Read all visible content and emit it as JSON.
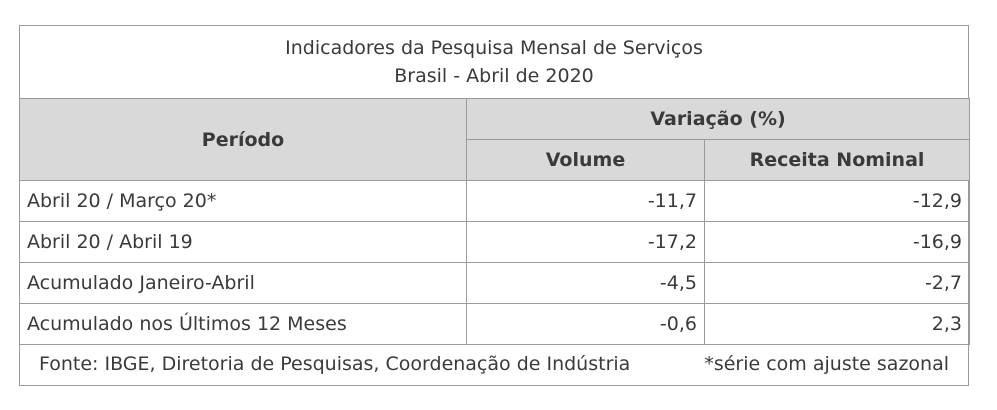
{
  "title": {
    "line1": "Indicadores da Pesquisa Mensal de Serviços",
    "line2": "Brasil - Abril de 2020"
  },
  "headers": {
    "period": "Período",
    "variation": "Variação (%)",
    "volume": "Volume",
    "revenue": "Receita Nominal"
  },
  "rows": [
    {
      "period": "Abril 20 / Março 20*",
      "volume": "-11,7",
      "revenue": "-12,9"
    },
    {
      "period": "Abril 20 / Abril 19",
      "volume": "-17,2",
      "revenue": "-16,9"
    },
    {
      "period": "Acumulado Janeiro-Abril",
      "volume": "-4,5",
      "revenue": "-2,7"
    },
    {
      "period": "Acumulado nos Últimos 12 Meses",
      "volume": "-0,6",
      "revenue": "2,3"
    }
  ],
  "footer": {
    "source": "Fonte: IBGE, Diretoria de Pesquisas, Coordenação de Indústria",
    "note": "*série com ajuste sazonal"
  },
  "colors": {
    "header_bg": "#d9d9d9",
    "border": "#9a9a9a",
    "text": "#3a3a3a"
  }
}
